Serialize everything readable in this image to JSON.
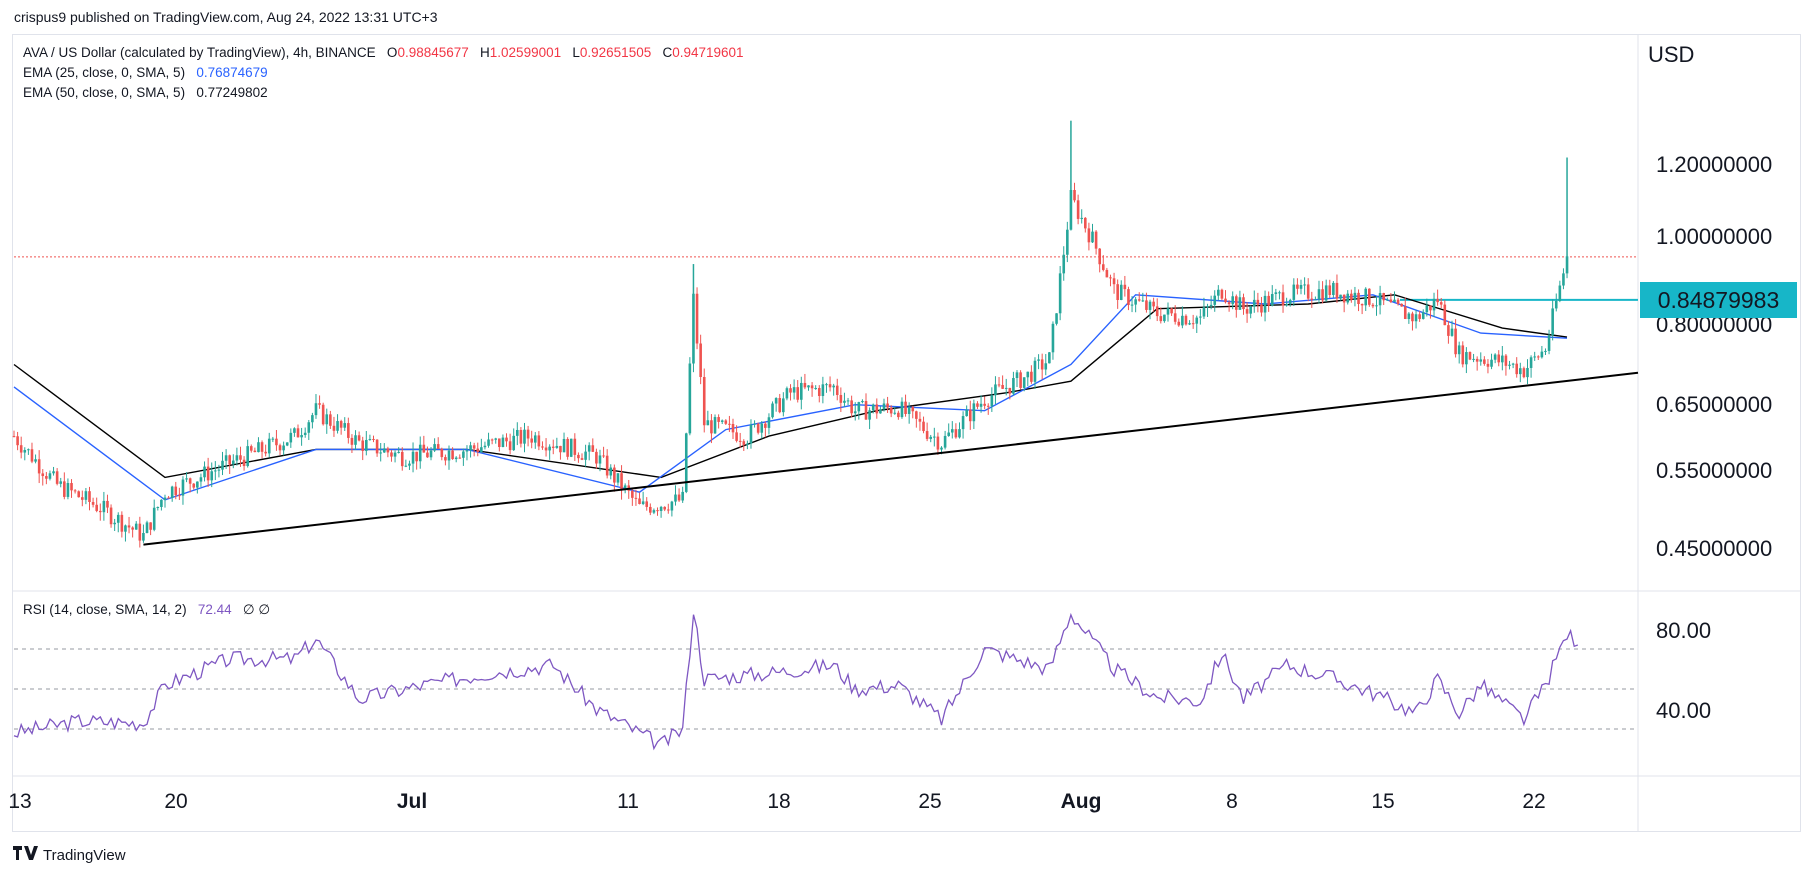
{
  "header": {
    "published": "crispus9 published on TradingView.com, Aug 24, 2022 13:31 UTC+3"
  },
  "legend": {
    "symbol": "AVA / US Dollar (calculated by TradingView), 4h, BINANCE",
    "o_label": "O",
    "o": "0.98845677",
    "h_label": "H",
    "h": "1.02599001",
    "l_label": "L",
    "l": "0.92651505",
    "c_label": "C",
    "c": "0.94719601",
    "ema25_label": "EMA (25, close, 0, SMA, 5)",
    "ema25": "0.76874679",
    "ema50_label": "EMA (50, close, 0, SMA, 5)",
    "ema50": "0.77249802",
    "rsi_label": "RSI (14, close, SMA, 14, 2)",
    "rsi": "72.44",
    "rsi_extra": "∅ ∅"
  },
  "price_axis": {
    "currency": "USD",
    "ticks": [
      "1.20000000",
      "1.00000000",
      "0.80000000",
      "0.65000000",
      "0.55000000",
      "0.45000000"
    ]
  },
  "rsi_axis": {
    "ticks": [
      "80.00",
      "40.00"
    ]
  },
  "price_label": "0.84879983",
  "brand": {
    "name": "TradingView"
  },
  "colors": {
    "up": "#26a69a",
    "down": "#ef5350",
    "ema25": "#2962ff",
    "ema50": "#000000",
    "rsi": "#7e57c2",
    "trendline": "#000000",
    "hline": "#17b6c8"
  },
  "chart_data": {
    "type": "candlestick",
    "title": "AVA / US Dollar",
    "timeframe": "4h",
    "x_ticks": [
      "13",
      "20",
      "Jul",
      "11",
      "18",
      "25",
      "Aug",
      "8",
      "15",
      "22"
    ],
    "x_range": [
      "2022-06-13",
      "2022-08-24"
    ],
    "price_scale": "log",
    "current_price": 0.94719601,
    "horizontal_level": 0.84879983,
    "trendline": [
      [
        "2022-06-19",
        0.455
      ],
      [
        "2022-08-25",
        0.705
      ]
    ],
    "close_path": [
      [
        "2022-06-13",
        0.6
      ],
      [
        "2022-06-15",
        0.53
      ],
      [
        "2022-06-17",
        0.5
      ],
      [
        "2022-06-19",
        0.465
      ],
      [
        "2022-06-20",
        0.52
      ],
      [
        "2022-06-23",
        0.56
      ],
      [
        "2022-06-26",
        0.6
      ],
      [
        "2022-06-27",
        0.64
      ],
      [
        "2022-06-29",
        0.59
      ],
      [
        "2022-07-01",
        0.57
      ],
      [
        "2022-07-04",
        0.58
      ],
      [
        "2022-07-07",
        0.6
      ],
      [
        "2022-07-10",
        0.57
      ],
      [
        "2022-07-12",
        0.5
      ],
      [
        "2022-07-14",
        0.51
      ],
      [
        "2022-07-14T12",
        0.85
      ],
      [
        "2022-07-15",
        0.62
      ],
      [
        "2022-07-17",
        0.6
      ],
      [
        "2022-07-19",
        0.67
      ],
      [
        "2022-07-21",
        0.68
      ],
      [
        "2022-07-22",
        0.64
      ],
      [
        "2022-07-24",
        0.645
      ],
      [
        "2022-07-26",
        0.59
      ],
      [
        "2022-07-28",
        0.66
      ],
      [
        "2022-07-30",
        0.7
      ],
      [
        "2022-07-31",
        0.73
      ],
      [
        "2022-08-01",
        1.1
      ],
      [
        "2022-08-02",
        0.99
      ],
      [
        "2022-08-03",
        0.87
      ],
      [
        "2022-08-05",
        0.82
      ],
      [
        "2022-08-07",
        0.81
      ],
      [
        "2022-08-08",
        0.87
      ],
      [
        "2022-08-09",
        0.83
      ],
      [
        "2022-08-11",
        0.86
      ],
      [
        "2022-08-13",
        0.87
      ],
      [
        "2022-08-15",
        0.85
      ],
      [
        "2022-08-17",
        0.81
      ],
      [
        "2022-08-18",
        0.85
      ],
      [
        "2022-08-19",
        0.74
      ],
      [
        "2022-08-21",
        0.725
      ],
      [
        "2022-08-22",
        0.71
      ],
      [
        "2022-08-23",
        0.75
      ],
      [
        "2022-08-24",
        0.947
      ]
    ],
    "spike_highs": [
      [
        "2022-07-14T12",
        0.93
      ],
      [
        "2022-08-01",
        1.34
      ],
      [
        "2022-08-24",
        1.22
      ]
    ],
    "ema25_path": [
      [
        "2022-06-13",
        0.68
      ],
      [
        "2022-06-20",
        0.51
      ],
      [
        "2022-06-27",
        0.58
      ],
      [
        "2022-07-04",
        0.58
      ],
      [
        "2022-07-12",
        0.52
      ],
      [
        "2022-07-16",
        0.61
      ],
      [
        "2022-07-22",
        0.65
      ],
      [
        "2022-07-28",
        0.64
      ],
      [
        "2022-08-01",
        0.72
      ],
      [
        "2022-08-04",
        0.86
      ],
      [
        "2022-08-10",
        0.84
      ],
      [
        "2022-08-15",
        0.86
      ],
      [
        "2022-08-20",
        0.78
      ],
      [
        "2022-08-24",
        0.77
      ]
    ],
    "ema50_path": [
      [
        "2022-06-13",
        0.72
      ],
      [
        "2022-06-20",
        0.54
      ],
      [
        "2022-06-27",
        0.58
      ],
      [
        "2022-07-04",
        0.58
      ],
      [
        "2022-07-13",
        0.54
      ],
      [
        "2022-07-18",
        0.6
      ],
      [
        "2022-07-23",
        0.64
      ],
      [
        "2022-07-29",
        0.67
      ],
      [
        "2022-08-01",
        0.69
      ],
      [
        "2022-08-05",
        0.83
      ],
      [
        "2022-08-12",
        0.84
      ],
      [
        "2022-08-16",
        0.86
      ],
      [
        "2022-08-21",
        0.79
      ],
      [
        "2022-08-24",
        0.772
      ]
    ],
    "rsi_path": [
      [
        "2022-06-13",
        28
      ],
      [
        "2022-06-16",
        34
      ],
      [
        "2022-06-19",
        33
      ],
      [
        "2022-06-20",
        52
      ],
      [
        "2022-06-23",
        65
      ],
      [
        "2022-06-26",
        65
      ],
      [
        "2022-06-27",
        75
      ],
      [
        "2022-06-29",
        45
      ],
      [
        "2022-07-02",
        52
      ],
      [
        "2022-07-05",
        58
      ],
      [
        "2022-07-08",
        62
      ],
      [
        "2022-07-10",
        40
      ],
      [
        "2022-07-13",
        22
      ],
      [
        "2022-07-14",
        30
      ],
      [
        "2022-07-14T12",
        90
      ],
      [
        "2022-07-15",
        55
      ],
      [
        "2022-07-18",
        58
      ],
      [
        "2022-07-21",
        62
      ],
      [
        "2022-07-22",
        50
      ],
      [
        "2022-07-24",
        52
      ],
      [
        "2022-07-26",
        35
      ],
      [
        "2022-07-28",
        70
      ],
      [
        "2022-07-31",
        60
      ],
      [
        "2022-08-01",
        88
      ],
      [
        "2022-08-03",
        60
      ],
      [
        "2022-08-05",
        46
      ],
      [
        "2022-08-07",
        44
      ],
      [
        "2022-08-08",
        68
      ],
      [
        "2022-08-09",
        45
      ],
      [
        "2022-08-11",
        62
      ],
      [
        "2022-08-13",
        56
      ],
      [
        "2022-08-15",
        48
      ],
      [
        "2022-08-17",
        38
      ],
      [
        "2022-08-18",
        55
      ],
      [
        "2022-08-19",
        38
      ],
      [
        "2022-08-20",
        52
      ],
      [
        "2022-08-22",
        35
      ],
      [
        "2022-08-23",
        52
      ],
      [
        "2022-08-24",
        78
      ],
      [
        "2022-08-24T12",
        72
      ]
    ],
    "rsi_levels": [
      70,
      50,
      30
    ]
  }
}
